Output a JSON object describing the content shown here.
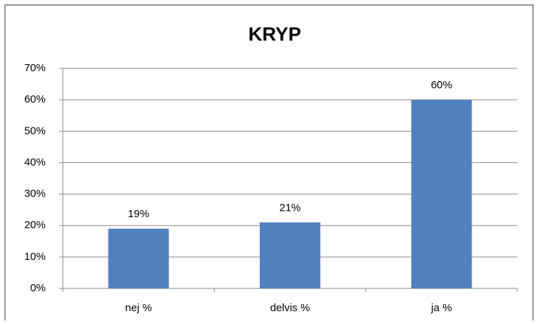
{
  "chart_data": {
    "type": "bar",
    "title": "KRYP",
    "categories": [
      "nej %",
      "delvis %",
      "ja %"
    ],
    "values": [
      19,
      21,
      60
    ],
    "value_labels": [
      "19%",
      "21%",
      "60%"
    ],
    "color": "#4f81bd",
    "ylim": [
      0,
      70
    ],
    "yticks": [
      {
        "value": 0,
        "label": "0%"
      },
      {
        "value": 10,
        "label": "10%"
      },
      {
        "value": 20,
        "label": "20%"
      },
      {
        "value": 30,
        "label": "30%"
      },
      {
        "value": 40,
        "label": "40%"
      },
      {
        "value": 50,
        "label": "50%"
      },
      {
        "value": 60,
        "label": "60%"
      },
      {
        "value": 70,
        "label": "70%"
      }
    ],
    "grid": true
  }
}
